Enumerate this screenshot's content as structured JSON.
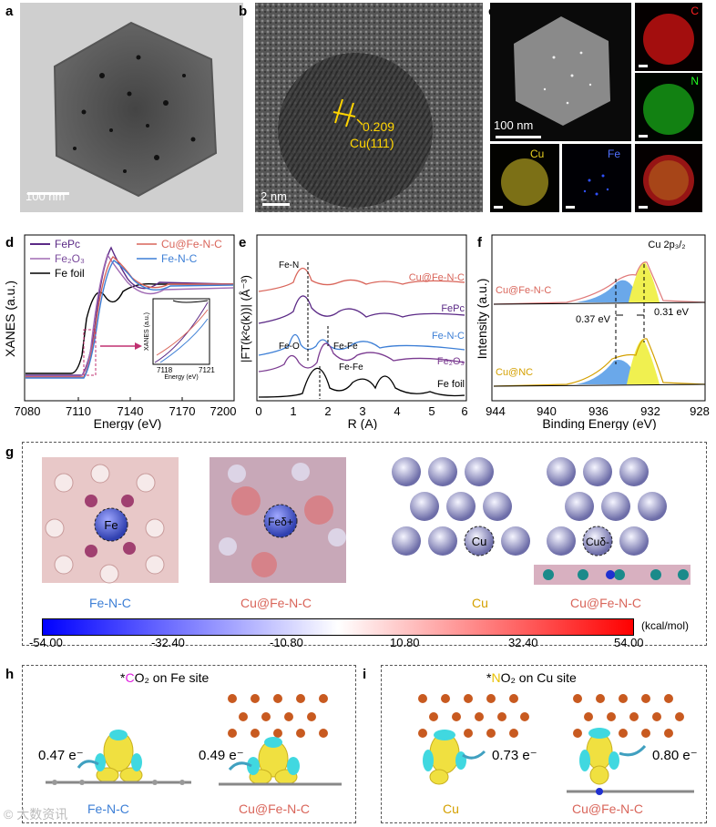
{
  "panel_labels": {
    "a": "a",
    "b": "b",
    "c": "c",
    "d": "d",
    "e": "e",
    "f": "f",
    "g": "g",
    "h": "h",
    "i": "i"
  },
  "panel_a": {
    "scale_bar": "100 nm"
  },
  "panel_b": {
    "scale_bar": "2 nm",
    "d_spacing": "0.209",
    "plane": "Cu(111)"
  },
  "panel_c": {
    "scale_bar": "100 nm",
    "maps": [
      "C",
      "N",
      "Cu",
      "Fe"
    ]
  },
  "chart_data": [
    {
      "id": "d",
      "type": "line",
      "xlabel": "Energy (eV)",
      "ylabel": "XANES (a.u.)",
      "xlim": [
        7080,
        7200
      ],
      "xticks": [
        "7080",
        "7110",
        "7140",
        "7170",
        "7200"
      ],
      "legend": [
        "FePc",
        "Cu@Fe-N-C",
        "Fe₂O₃",
        "Fe-N-C",
        "Fe foil"
      ],
      "series": [
        {
          "name": "FePc",
          "color": "#5b2a86"
        },
        {
          "name": "Cu@Fe-N-C",
          "color": "#d9655a"
        },
        {
          "name": "Fe2O3",
          "color": "#a06ab4"
        },
        {
          "name": "Fe-N-C",
          "color": "#3d7fd6"
        },
        {
          "name": "Fe foil",
          "color": "#000000"
        }
      ],
      "inset": {
        "ylabel": "XANES (a.u.)",
        "xlabel": "Energy (eV)",
        "xticks": [
          "7118",
          "7121"
        ]
      }
    },
    {
      "id": "e",
      "type": "line",
      "xlabel": "R (A)",
      "ylabel": "|FT(k²c(k))| (Å⁻³)",
      "xlim": [
        0,
        6
      ],
      "xticks": [
        "0",
        "1",
        "2",
        "3",
        "4",
        "5",
        "6"
      ],
      "series_labels": [
        "Cu@Fe-N-C",
        "FePc",
        "Fe-N-C",
        "Fe₂O₃",
        "Fe foil"
      ],
      "annotations": [
        "Fe-N",
        "Fe-O",
        "Fe-Fe",
        "Fe-Fe"
      ]
    },
    {
      "id": "f",
      "type": "line",
      "title": "Cu 2p₃/₂",
      "xlabel": "Binding Energy (eV)",
      "ylabel": "Intensity (a.u.)",
      "xlim": [
        944,
        928
      ],
      "xticks": [
        "944",
        "940",
        "936",
        "932",
        "928"
      ],
      "series_labels": [
        "Cu@Fe-N-C",
        "Cu@NC"
      ],
      "annotations": [
        "0.37 eV",
        "0.31 eV"
      ]
    }
  ],
  "panel_g": {
    "atoms": [
      "Fe",
      "Feδ+",
      "Cu",
      "Cuδ-"
    ],
    "captions": [
      "Fe-N-C",
      "Cu@Fe-N-C",
      "Cu",
      "Cu@Fe-N-C"
    ],
    "colorbar": {
      "ticks": [
        "-54.00",
        "-32.40",
        "-10.80",
        "10.80",
        "32.40",
        "54.00"
      ],
      "unit": "(kcal/mol)"
    }
  },
  "panel_h": {
    "title_pre": "*",
    "title_C": "C",
    "title_post": "O₂ on Fe site",
    "values": [
      "0.47 e⁻",
      "0.49 e⁻"
    ],
    "captions": [
      "Fe-N-C",
      "Cu@Fe-N-C"
    ]
  },
  "panel_i": {
    "title_pre": "*",
    "title_N": "N",
    "title_post": "O₂ on Cu site",
    "values": [
      "0.73 e⁻",
      "0.80 e⁻"
    ],
    "captions": [
      "Cu",
      "Cu@Fe-N-C"
    ]
  },
  "watermark": "© 大数资讯"
}
